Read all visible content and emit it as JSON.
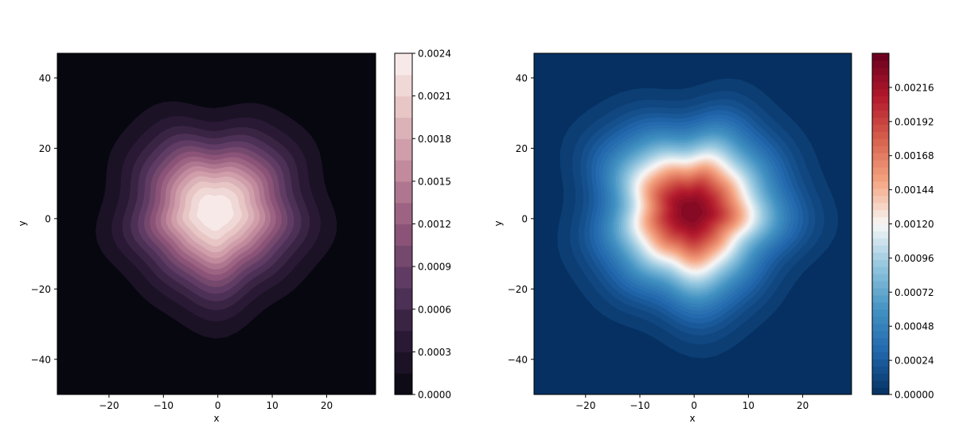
{
  "chart_data": [
    {
      "type": "heatmap",
      "title": "",
      "xlabel": "x",
      "ylabel": "y",
      "xlim": [
        -29.5,
        29
      ],
      "ylim": [
        -50,
        47
      ],
      "xticks": [
        -20,
        -10,
        0,
        10,
        20
      ],
      "yticks": [
        -40,
        -20,
        0,
        20,
        40
      ],
      "density": {
        "peak_x": -0.5,
        "peak_y": 2,
        "peak_value": 0.0024,
        "spread_sigma": 9
      },
      "colormap": {
        "name": "rocket-purple",
        "stops": [
          "#07070f",
          "#2b1a37",
          "#5c3a62",
          "#94597c",
          "#c48d9f",
          "#e6c3c2",
          "#fbf2ef"
        ]
      },
      "colorbar": {
        "min": 0,
        "max": 0.0024,
        "levels": 16,
        "ticks": [
          0,
          0.0003,
          0.0006,
          0.0009,
          0.0012,
          0.0015,
          0.0018,
          0.0021,
          0.0024
        ],
        "tick_labels": [
          "0.0000",
          "0.0003",
          "0.0006",
          "0.0009",
          "0.0012",
          "0.0015",
          "0.0018",
          "0.0021",
          "0.0024"
        ]
      }
    },
    {
      "type": "heatmap",
      "title": "",
      "xlabel": "x",
      "ylabel": "y",
      "xlim": [
        -29.5,
        29
      ],
      "ylim": [
        -50,
        47
      ],
      "xticks": [
        -20,
        -10,
        0,
        10,
        20
      ],
      "yticks": [
        -40,
        -20,
        0,
        20,
        40
      ],
      "density": {
        "peak_x": -0.5,
        "peak_y": 2,
        "peak_value": 0.0023,
        "spread_sigma": 9
      },
      "colormap": {
        "name": "RdBu_r",
        "stops": [
          "#053061",
          "#2166ac",
          "#4393c3",
          "#92c5de",
          "#f7f7f7",
          "#f4a582",
          "#d6604d",
          "#b2182b",
          "#67001f"
        ]
      },
      "colorbar": {
        "min": 0,
        "max": 0.0024,
        "levels": 48,
        "ticks": [
          0,
          0.00024,
          0.00048,
          0.00072,
          0.00096,
          0.0012,
          0.00144,
          0.00168,
          0.00192,
          0.00216
        ],
        "tick_labels": [
          "0.00000",
          "0.00024",
          "0.00048",
          "0.00072",
          "0.00096",
          "0.00120",
          "0.00144",
          "0.00168",
          "0.00192",
          "0.00216"
        ]
      }
    }
  ]
}
